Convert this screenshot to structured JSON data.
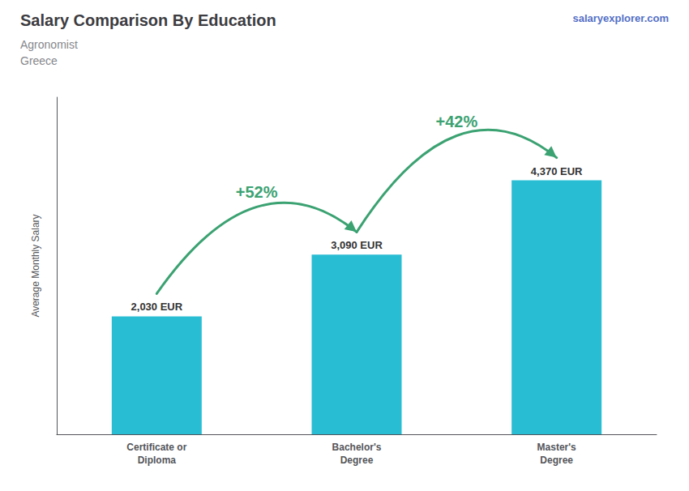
{
  "chart_data": {
    "type": "bar",
    "title": "Salary Comparison By Education",
    "subtitle": [
      "Agronomist",
      "Greece"
    ],
    "watermark": "salaryexplorer.com",
    "ylabel": "Average Monthly Salary",
    "categories": [
      "Certificate or\nDiploma",
      "Bachelor's\nDegree",
      "Master's\nDegree"
    ],
    "values": [
      2030,
      3090,
      4370
    ],
    "value_labels": [
      "2,030 EUR",
      "3,090 EUR",
      "4,370 EUR"
    ],
    "annotations": [
      "+52%",
      "+42%"
    ],
    "color": "#29bdd4",
    "ylim": [
      0,
      5800
    ],
    "grid": false,
    "data_labels": true,
    "tick_labels": "x"
  }
}
